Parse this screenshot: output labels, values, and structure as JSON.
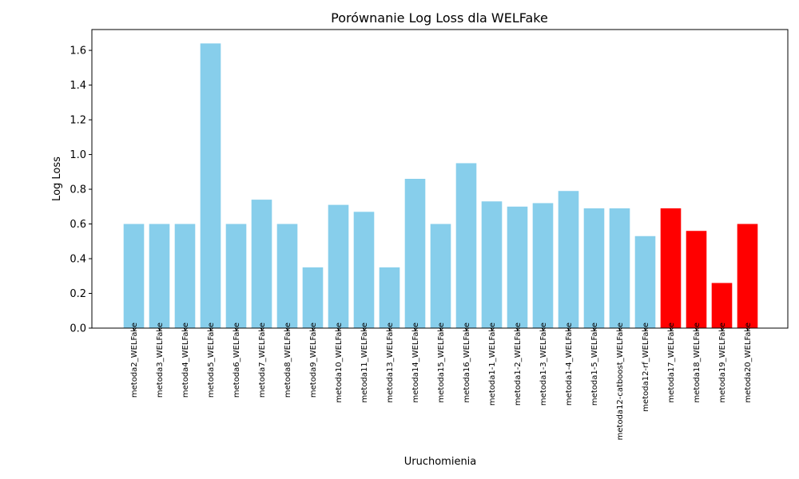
{
  "chart_data": {
    "type": "bar",
    "title": "Porównanie Log Loss dla WELFake",
    "xlabel": "Uruchomienia",
    "ylabel": "Log Loss",
    "ylim": [
      0,
      1.72
    ],
    "yticks": [
      "0.0",
      "0.2",
      "0.4",
      "0.6",
      "0.8",
      "1.0",
      "1.2",
      "1.4",
      "1.6"
    ],
    "grid": false,
    "colors": {
      "default": "#87ceeb",
      "highlight": "#ff0000"
    },
    "categories": [
      "metoda2_WELFake",
      "metoda3_WELFake",
      "metoda4_WELFake",
      "metoda5_WELFake",
      "metoda6_WELFake",
      "metoda7_WELFake",
      "metoda8_WELFake",
      "metoda9_WELFake",
      "metoda10_WELFake",
      "metoda11_WELFake",
      "metoda13_WELFake",
      "metoda14_WELFake",
      "metoda15_WELFake",
      "metoda16_WELFake",
      "metoda1-1_WELFake",
      "metoda1-2_WELFake",
      "metoda1-3_WELFake",
      "metoda1-4_WELFake",
      "metoda1-5_WELFake",
      "metoda12-catboost_WELFake",
      "metoda12-rf_WELFake",
      "metoda17_WELFake",
      "metoda18_WELFake",
      "metoda19_WELFake",
      "metoda20_WELFake"
    ],
    "values": [
      0.6,
      0.6,
      0.6,
      1.64,
      0.6,
      0.74,
      0.6,
      0.35,
      0.71,
      0.67,
      0.35,
      0.86,
      0.6,
      0.95,
      0.73,
      0.7,
      0.72,
      0.79,
      0.69,
      0.69,
      0.53,
      0.69,
      0.56,
      0.26,
      0.6
    ],
    "highlighted": [
      false,
      false,
      false,
      false,
      false,
      false,
      false,
      false,
      false,
      false,
      false,
      false,
      false,
      false,
      false,
      false,
      false,
      false,
      false,
      false,
      false,
      true,
      true,
      true,
      true
    ]
  }
}
